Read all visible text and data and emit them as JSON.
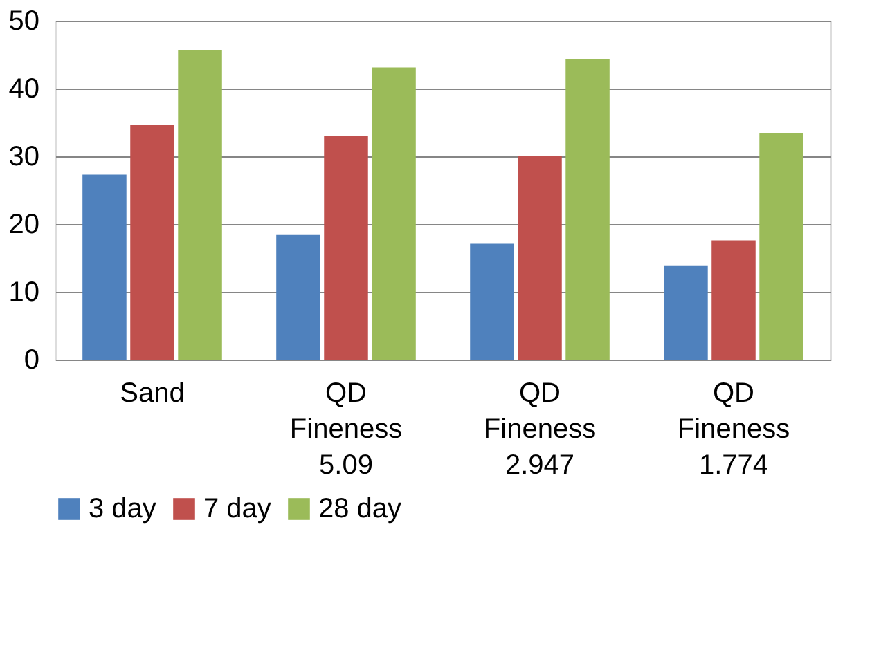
{
  "chart_data": {
    "type": "bar",
    "categories": [
      "Sand",
      "QD\nFineness\n5.09",
      "QD\nFineness\n2.947",
      "QD\nFineness\n1.774"
    ],
    "series": [
      {
        "name": "3 day",
        "color": "#4f81bd",
        "values": [
          27.3,
          18.4,
          17.1,
          13.9
        ]
      },
      {
        "name": "7 day",
        "color": "#c0504d",
        "values": [
          34.6,
          33.0,
          30.1,
          17.6
        ]
      },
      {
        "name": "28 day",
        "color": "#9bbb59",
        "values": [
          45.6,
          43.1,
          44.4,
          33.4
        ]
      }
    ],
    "ylim": [
      0,
      50
    ],
    "yticks": [
      0,
      10,
      20,
      30,
      40,
      50
    ],
    "grid": "y",
    "legend": "bottom"
  }
}
